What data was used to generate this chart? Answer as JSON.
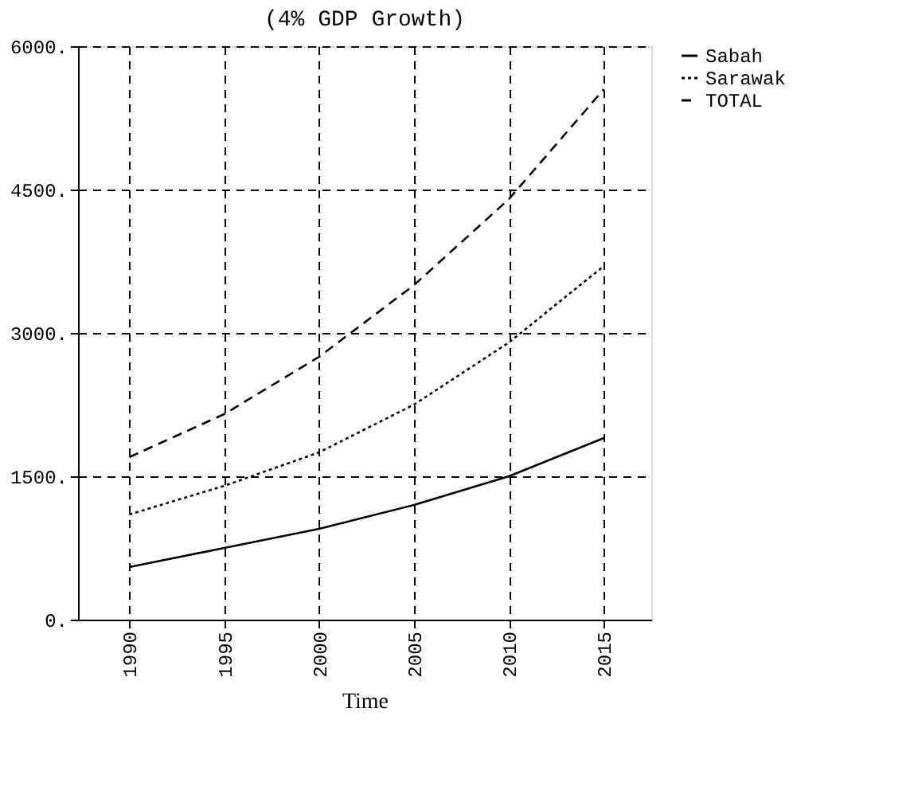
{
  "chart_data": {
    "type": "line",
    "title": "(4% GDP Growth)",
    "xlabel": "Time",
    "x": [
      1990,
      1995,
      2000,
      2005,
      2010,
      2015
    ],
    "series": [
      {
        "name": "Sabah",
        "color": "#000000",
        "line_style": "solid",
        "values": [
          550,
          750,
          950,
          1200,
          1500,
          1900
        ]
      },
      {
        "name": "Sarawak",
        "color": "#000000",
        "line_style": "dotted",
        "values": [
          1100,
          1400,
          1750,
          2250,
          2900,
          3700
        ]
      },
      {
        "name": "TOTAL",
        "color": "#000000",
        "line_style": "dashed",
        "values": [
          1700,
          2150,
          2750,
          3500,
          4400,
          5550
        ]
      }
    ],
    "xlim": [
      1987.3,
      2017.5
    ],
    "xticks": [
      1990,
      1995,
      2000,
      2005,
      2010,
      2015
    ],
    "ylim": [
      0,
      6000
    ],
    "yticks": [
      {
        "value": 0,
        "label": "0."
      },
      {
        "value": 1500,
        "label": "1500."
      },
      {
        "value": 3000,
        "label": "3000."
      },
      {
        "value": 4500,
        "label": "4500."
      },
      {
        "value": 6000,
        "label": "6000."
      }
    ],
    "grid": true,
    "legend": "right",
    "marker": "none"
  }
}
